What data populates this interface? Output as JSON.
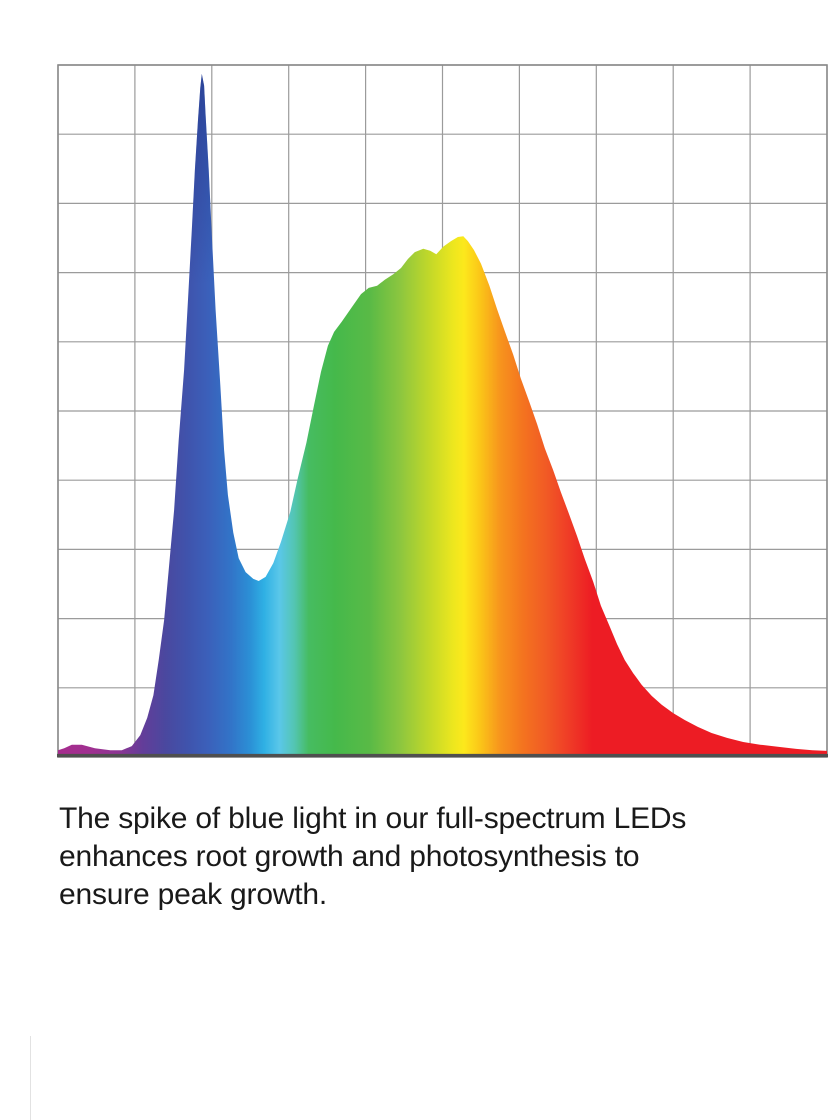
{
  "page": {
    "background": "#ffffff"
  },
  "caption": {
    "color": "#191919",
    "lines": [
      "The spike of blue light in our full-spectrum LEDs",
      "enhances root growth and photosynthesis to",
      "ensure peak growth."
    ]
  },
  "chart_data": {
    "type": "area",
    "title": "",
    "xlabel": "",
    "ylabel": "",
    "description": "Full-spectrum LED spectral power distribution; horizontal rainbow gradient from violet/magenta through blue, cyan, green, yellow, orange to red. Sharp blue spike near left, broad green-to-red hump in middle, long red tail to the right. Axes are unlabeled.",
    "grid": {
      "columns": 10,
      "rows": 10,
      "line_color": "#9b9b9b",
      "border_color": "#8a8a8a",
      "axis_color": "#4f4f4f",
      "grid_on": true
    },
    "xlim": [
      0,
      1
    ],
    "ylim": [
      0,
      1
    ],
    "series": [
      {
        "name": "led-spectral-output",
        "points": [
          [
            0.0,
            0.004
          ],
          [
            0.008,
            0.007
          ],
          [
            0.018,
            0.012
          ],
          [
            0.031,
            0.012
          ],
          [
            0.048,
            0.007
          ],
          [
            0.068,
            0.004
          ],
          [
            0.083,
            0.004
          ],
          [
            0.096,
            0.01
          ],
          [
            0.107,
            0.026
          ],
          [
            0.116,
            0.051
          ],
          [
            0.124,
            0.084
          ],
          [
            0.131,
            0.135
          ],
          [
            0.138,
            0.193
          ],
          [
            0.144,
            0.266
          ],
          [
            0.151,
            0.353
          ],
          [
            0.157,
            0.455
          ],
          [
            0.164,
            0.557
          ],
          [
            0.169,
            0.659
          ],
          [
            0.174,
            0.76
          ],
          [
            0.178,
            0.848
          ],
          [
            0.182,
            0.92
          ],
          [
            0.185,
            0.967
          ],
          [
            0.187,
            0.987
          ],
          [
            0.19,
            0.97
          ],
          [
            0.192,
            0.927
          ],
          [
            0.196,
            0.848
          ],
          [
            0.2,
            0.753
          ],
          [
            0.205,
            0.644
          ],
          [
            0.211,
            0.535
          ],
          [
            0.216,
            0.44
          ],
          [
            0.221,
            0.375
          ],
          [
            0.228,
            0.32
          ],
          [
            0.235,
            0.283
          ],
          [
            0.244,
            0.263
          ],
          [
            0.254,
            0.253
          ],
          [
            0.261,
            0.25
          ],
          [
            0.27,
            0.256
          ],
          [
            0.28,
            0.276
          ],
          [
            0.29,
            0.307
          ],
          [
            0.302,
            0.35
          ],
          [
            0.312,
            0.4
          ],
          [
            0.323,
            0.451
          ],
          [
            0.333,
            0.506
          ],
          [
            0.342,
            0.554
          ],
          [
            0.351,
            0.592
          ],
          [
            0.359,
            0.612
          ],
          [
            0.369,
            0.627
          ],
          [
            0.382,
            0.648
          ],
          [
            0.394,
            0.667
          ],
          [
            0.404,
            0.676
          ],
          [
            0.415,
            0.679
          ],
          [
            0.425,
            0.688
          ],
          [
            0.436,
            0.696
          ],
          [
            0.446,
            0.705
          ],
          [
            0.455,
            0.718
          ],
          [
            0.464,
            0.728
          ],
          [
            0.475,
            0.733
          ],
          [
            0.484,
            0.73
          ],
          [
            0.492,
            0.725
          ],
          [
            0.501,
            0.736
          ],
          [
            0.511,
            0.744
          ],
          [
            0.52,
            0.75
          ],
          [
            0.527,
            0.751
          ],
          [
            0.533,
            0.744
          ],
          [
            0.541,
            0.731
          ],
          [
            0.55,
            0.711
          ],
          [
            0.561,
            0.679
          ],
          [
            0.571,
            0.645
          ],
          [
            0.581,
            0.613
          ],
          [
            0.592,
            0.579
          ],
          [
            0.602,
            0.544
          ],
          [
            0.613,
            0.51
          ],
          [
            0.623,
            0.478
          ],
          [
            0.633,
            0.443
          ],
          [
            0.644,
            0.411
          ],
          [
            0.654,
            0.379
          ],
          [
            0.664,
            0.349
          ],
          [
            0.675,
            0.315
          ],
          [
            0.685,
            0.282
          ],
          [
            0.696,
            0.249
          ],
          [
            0.706,
            0.214
          ],
          [
            0.717,
            0.185
          ],
          [
            0.727,
            0.158
          ],
          [
            0.737,
            0.135
          ],
          [
            0.748,
            0.116
          ],
          [
            0.759,
            0.099
          ],
          [
            0.772,
            0.083
          ],
          [
            0.785,
            0.07
          ],
          [
            0.8,
            0.058
          ],
          [
            0.815,
            0.048
          ],
          [
            0.832,
            0.038
          ],
          [
            0.85,
            0.029
          ],
          [
            0.87,
            0.022
          ],
          [
            0.891,
            0.016
          ],
          [
            0.913,
            0.012
          ],
          [
            0.936,
            0.009
          ],
          [
            0.96,
            0.006
          ],
          [
            0.981,
            0.004
          ],
          [
            1.0,
            0.003
          ]
        ]
      }
    ],
    "features": {
      "blue_spike_peak": {
        "x_frac": 0.187,
        "intensity": 0.99
      },
      "valley": {
        "x_frac": 0.261,
        "intensity": 0.25
      },
      "main_hump_peak": {
        "x_frac": 0.525,
        "intensity": 0.75
      }
    },
    "gradient_stops": [
      {
        "at": 0.0,
        "color": "#a62c8d"
      },
      {
        "at": 0.04,
        "color": "#a02f90"
      },
      {
        "at": 0.08,
        "color": "#8b3593"
      },
      {
        "at": 0.11,
        "color": "#633d99"
      },
      {
        "at": 0.14,
        "color": "#4a489f"
      },
      {
        "at": 0.17,
        "color": "#3f54ad"
      },
      {
        "at": 0.195,
        "color": "#3b60ba"
      },
      {
        "at": 0.225,
        "color": "#3274c8"
      },
      {
        "at": 0.25,
        "color": "#2b90d6"
      },
      {
        "at": 0.268,
        "color": "#2fb0e4"
      },
      {
        "at": 0.288,
        "color": "#5ac7e9"
      },
      {
        "at": 0.308,
        "color": "#53c5b0"
      },
      {
        "at": 0.326,
        "color": "#46bc61"
      },
      {
        "at": 0.36,
        "color": "#45b94b"
      },
      {
        "at": 0.405,
        "color": "#59ba46"
      },
      {
        "at": 0.445,
        "color": "#8cc63f"
      },
      {
        "at": 0.485,
        "color": "#c5d928"
      },
      {
        "at": 0.515,
        "color": "#eee71e"
      },
      {
        "at": 0.528,
        "color": "#fce81c"
      },
      {
        "at": 0.55,
        "color": "#fbc418"
      },
      {
        "at": 0.575,
        "color": "#f7941d"
      },
      {
        "at": 0.605,
        "color": "#f4731f"
      },
      {
        "at": 0.635,
        "color": "#f15a25"
      },
      {
        "at": 0.665,
        "color": "#ef3b26"
      },
      {
        "at": 0.695,
        "color": "#ed1c24"
      },
      {
        "at": 1.0,
        "color": "#ed1c24"
      }
    ],
    "spike_tip_shade": {
      "color": "#1b2a7a",
      "alpha": 0.5
    },
    "legend": {
      "visible": false
    }
  }
}
